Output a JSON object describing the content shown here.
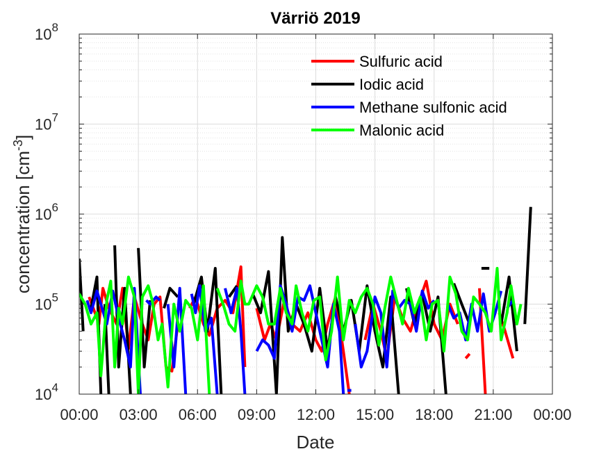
{
  "chart_data": {
    "type": "line",
    "title": "Värriö 2019",
    "xlabel": "Date",
    "ylabel": "concentration [cm",
    "ylabel_exponent": "-3",
    "yscale": "log",
    "ylim": [
      10000,
      100000000
    ],
    "xlim": [
      0,
      24
    ],
    "grid": true,
    "legend_position": "top-right",
    "x_tick_labels": [
      "00:00",
      "03:00",
      "06:00",
      "09:00",
      "12:00",
      "15:00",
      "18:00",
      "21:00",
      "00:00"
    ],
    "y_ticks": [
      {
        "base": "10",
        "exp": "4",
        "value": 10000
      },
      {
        "base": "10",
        "exp": "5",
        "value": 100000
      },
      {
        "base": "10",
        "exp": "6",
        "value": 1000000
      },
      {
        "base": "10",
        "exp": "7",
        "value": 10000000
      },
      {
        "base": "10",
        "exp": "8",
        "value": 100000000
      }
    ],
    "series": [
      {
        "name": "Sulfuric acid",
        "color": "#ff0000",
        "points": [
          [
            0.5,
            120000
          ],
          [
            0.8,
            80000
          ],
          [
            1.0,
            60000
          ],
          [
            1.2,
            150000
          ],
          [
            1.5,
            90000
          ],
          [
            1.9,
            60000
          ],
          [
            2.2,
            150000
          ],
          [
            2.5,
            32000
          ],
          [
            2.8,
            120000
          ],
          [
            3.2,
            60000
          ],
          [
            3.5,
            40000
          ],
          [
            3.8,
            100000
          ],
          [
            4.1,
            120000
          ],
          [
            4.4,
            20000
          ],
          [
            4.7,
            18000
          ],
          [
            5.0,
            60000
          ],
          [
            null,
            null
          ],
          [
            5.6,
            90000
          ],
          [
            5.9,
            120000
          ],
          [
            6.3,
            60000
          ],
          [
            6.6,
            45000
          ],
          [
            7.0,
            90000
          ],
          [
            7.4,
            110000
          ],
          [
            7.8,
            80000
          ],
          [
            8.2,
            260000
          ],
          [
            8.4,
            20000
          ],
          [
            null,
            null
          ],
          [
            9.0,
            90000
          ],
          [
            9.4,
            40000
          ],
          [
            9.7,
            60000
          ],
          [
            10.0,
            40000
          ],
          [
            10.4,
            110000
          ],
          [
            10.8,
            60000
          ],
          [
            11.2,
            50000
          ],
          [
            11.6,
            80000
          ],
          [
            12.0,
            40000
          ],
          [
            12.3,
            30000
          ],
          [
            12.6,
            60000
          ],
          [
            13.0,
            120000
          ],
          [
            13.4,
            30000
          ],
          [
            13.7,
            10000
          ],
          [
            null,
            null
          ],
          [
            14.5,
            40000
          ],
          [
            14.9,
            100000
          ],
          [
            15.3,
            50000
          ],
          [
            15.6,
            25000
          ],
          [
            16.0,
            120000
          ],
          [
            16.4,
            70000
          ],
          [
            16.8,
            50000
          ],
          [
            17.2,
            100000
          ],
          [
            17.6,
            180000
          ],
          [
            18.0,
            60000
          ],
          [
            18.4,
            40000
          ],
          [
            18.8,
            100000
          ],
          [
            19.2,
            60000
          ],
          [
            null,
            null
          ],
          [
            19.6,
            25000
          ],
          [
            19.8,
            28000
          ],
          [
            null,
            null
          ],
          [
            20.3,
            150000
          ],
          [
            20.6,
            10000
          ],
          [
            null,
            null
          ],
          [
            21.3,
            80000
          ],
          [
            21.6,
            50000
          ],
          [
            22.0,
            25000
          ]
        ]
      },
      {
        "name": "Iodic acid",
        "color": "#000000",
        "points": [
          [
            0.0,
            320000
          ],
          [
            0.2,
            50000
          ],
          [
            null,
            null
          ],
          [
            0.6,
            90000
          ],
          [
            0.9,
            200000
          ],
          [
            1.1,
            10000
          ],
          [
            null,
            null
          ],
          [
            1.3,
            100000
          ],
          [
            1.5,
            10000
          ],
          [
            null,
            null
          ],
          [
            1.8,
            450000
          ],
          [
            2.0,
            20000
          ],
          [
            2.3,
            150000
          ],
          [
            2.6,
            10000
          ],
          [
            null,
            null
          ],
          [
            3.0,
            420000
          ],
          [
            3.3,
            20000
          ],
          [
            3.6,
            110000
          ],
          [
            null,
            null
          ],
          [
            4.3,
            90000
          ],
          [
            4.6,
            150000
          ],
          [
            5.0,
            120000
          ],
          [
            null,
            null
          ],
          [
            5.8,
            100000
          ],
          [
            6.2,
            200000
          ],
          [
            6.5,
            50000
          ],
          [
            6.9,
            250000
          ],
          [
            7.2,
            10000
          ],
          [
            null,
            null
          ],
          [
            7.6,
            120000
          ],
          [
            8.0,
            160000
          ],
          [
            null,
            null
          ],
          [
            8.8,
            130000
          ],
          [
            9.2,
            80000
          ],
          [
            9.6,
            230000
          ],
          [
            10.0,
            10000
          ],
          [
            10.3,
            550000
          ],
          [
            10.6,
            50000
          ],
          [
            11.0,
            100000
          ],
          [
            11.4,
            60000
          ],
          [
            11.8,
            30000
          ],
          [
            12.2,
            150000
          ],
          [
            12.6,
            30000
          ],
          [
            13.0,
            120000
          ],
          [
            13.4,
            50000
          ],
          [
            13.8,
            110000
          ],
          [
            14.2,
            30000
          ],
          [
            14.6,
            160000
          ],
          [
            15.0,
            50000
          ],
          [
            15.4,
            20000
          ],
          [
            15.8,
            120000
          ],
          [
            16.2,
            10000
          ],
          [
            null,
            null
          ],
          [
            16.6,
            150000
          ],
          [
            17.0,
            60000
          ],
          [
            17.4,
            130000
          ],
          [
            17.8,
            50000
          ],
          [
            18.2,
            120000
          ],
          [
            18.6,
            10000
          ],
          [
            null,
            null
          ],
          [
            19.0,
            170000
          ],
          [
            19.4,
            100000
          ],
          [
            19.8,
            60000
          ],
          [
            null,
            null
          ],
          [
            20.4,
            250000
          ],
          [
            20.8,
            250000
          ],
          [
            null,
            null
          ],
          [
            21.4,
            60000
          ],
          [
            21.8,
            200000
          ],
          [
            22.2,
            30000
          ],
          [
            null,
            null
          ],
          [
            22.6,
            60000
          ],
          [
            22.9,
            1200000
          ]
        ]
      },
      {
        "name": "Methane sulfonic acid",
        "color": "#0000ff",
        "points": [
          [
            0.4,
            110000
          ],
          [
            0.6,
            80000
          ],
          [
            0.9,
            140000
          ],
          [
            1.1,
            100000
          ],
          [
            1.4,
            60000
          ],
          [
            1.7,
            140000
          ],
          [
            2.0,
            70000
          ],
          [
            2.3,
            40000
          ],
          [
            2.6,
            20000
          ],
          [
            2.8,
            150000
          ],
          [
            3.1,
            10000
          ],
          [
            null,
            null
          ],
          [
            3.4,
            110000
          ],
          [
            3.6,
            100000
          ],
          [
            3.9,
            120000
          ],
          [
            4.1,
            110000
          ],
          [
            null,
            null
          ],
          [
            4.5,
            100000
          ],
          [
            4.8,
            20000
          ],
          [
            5.1,
            150000
          ],
          [
            5.4,
            10000
          ],
          [
            null,
            null
          ],
          [
            5.7,
            130000
          ],
          [
            5.9,
            80000
          ],
          [
            6.1,
            160000
          ],
          [
            6.4,
            50000
          ],
          [
            6.7,
            70000
          ],
          [
            7.0,
            10000
          ],
          [
            null,
            null
          ],
          [
            7.4,
            150000
          ],
          [
            7.7,
            80000
          ],
          [
            8.0,
            150000
          ],
          [
            8.2,
            50000
          ],
          [
            8.4,
            10000
          ],
          [
            null,
            null
          ],
          [
            9.0,
            30000
          ],
          [
            9.3,
            40000
          ],
          [
            9.6,
            35000
          ],
          [
            9.9,
            25000
          ],
          [
            10.2,
            160000
          ],
          [
            10.5,
            100000
          ],
          [
            10.8,
            50000
          ],
          [
            11.1,
            120000
          ],
          [
            11.4,
            110000
          ],
          [
            11.7,
            160000
          ],
          [
            12.0,
            80000
          ],
          [
            12.3,
            40000
          ],
          [
            12.6,
            20000
          ],
          [
            12.9,
            100000
          ],
          [
            13.2,
            50000
          ],
          [
            13.4,
            10000
          ],
          [
            null,
            null
          ],
          [
            13.6,
            11000
          ],
          [
            13.8,
            11000
          ],
          [
            null,
            null
          ],
          [
            14.0,
            60000
          ],
          [
            14.3,
            20000
          ],
          [
            14.6,
            30000
          ],
          [
            15.0,
            120000
          ],
          [
            15.3,
            80000
          ],
          [
            15.6,
            20000
          ],
          [
            15.9,
            140000
          ],
          [
            16.2,
            90000
          ],
          [
            16.5,
            110000
          ],
          [
            16.8,
            100000
          ],
          [
            17.1,
            50000
          ],
          [
            17.4,
            140000
          ],
          [
            17.7,
            90000
          ],
          [
            18.0,
            110000
          ],
          [
            null,
            null
          ],
          [
            18.7,
            100000
          ],
          [
            19.0,
            70000
          ],
          [
            19.3,
            80000
          ],
          [
            19.6,
            40000
          ],
          [
            19.9,
            100000
          ],
          [
            20.2,
            50000
          ],
          [
            20.5,
            130000
          ],
          [
            20.8,
            50000
          ],
          [
            21.1,
            80000
          ],
          [
            21.4,
            140000
          ],
          [
            null,
            null
          ],
          [
            21.7,
            90000
          ],
          [
            22.0,
            110000
          ]
        ]
      },
      {
        "name": "Malonic acid",
        "color": "#00ff00",
        "points": [
          [
            0.0,
            130000
          ],
          [
            0.3,
            100000
          ],
          [
            0.6,
            60000
          ],
          [
            0.9,
            80000
          ],
          [
            1.1,
            16000
          ],
          [
            1.4,
            110000
          ],
          [
            1.6,
            180000
          ],
          [
            1.8,
            20000
          ],
          [
            2.0,
            90000
          ],
          [
            2.2,
            60000
          ],
          [
            2.5,
            200000
          ],
          [
            2.8,
            120000
          ],
          [
            3.0,
            10000
          ],
          [
            3.2,
            120000
          ],
          [
            3.5,
            160000
          ],
          [
            3.7,
            110000
          ],
          [
            4.0,
            40000
          ],
          [
            4.2,
            60000
          ],
          [
            4.5,
            12000
          ],
          [
            4.8,
            100000
          ],
          [
            5.1,
            50000
          ],
          [
            5.4,
            110000
          ],
          [
            5.7,
            90000
          ],
          [
            6.0,
            40000
          ],
          [
            6.3,
            160000
          ],
          [
            6.6,
            10000
          ],
          [
            null,
            null
          ],
          [
            7.0,
            150000
          ],
          [
            7.3,
            100000
          ],
          [
            7.6,
            60000
          ],
          [
            7.9,
            50000
          ],
          [
            8.2,
            180000
          ],
          [
            8.4,
            100000
          ],
          [
            8.6,
            100000
          ],
          [
            9.0,
            160000
          ],
          [
            9.3,
            120000
          ],
          [
            9.6,
            60000
          ],
          [
            9.9,
            60000
          ],
          [
            10.2,
            150000
          ],
          [
            10.5,
            80000
          ],
          [
            10.8,
            60000
          ],
          [
            11.0,
            160000
          ],
          [
            11.3,
            80000
          ],
          [
            11.6,
            50000
          ],
          [
            11.9,
            110000
          ],
          [
            12.2,
            120000
          ],
          [
            12.5,
            24000
          ],
          [
            12.8,
            50000
          ],
          [
            13.1,
            200000
          ],
          [
            13.4,
            40000
          ],
          [
            13.7,
            110000
          ],
          [
            14.0,
            80000
          ],
          [
            14.3,
            120000
          ],
          [
            14.6,
            150000
          ],
          [
            14.9,
            100000
          ],
          [
            15.2,
            35000
          ],
          [
            15.5,
            90000
          ],
          [
            15.8,
            200000
          ],
          [
            16.1,
            110000
          ],
          [
            16.4,
            60000
          ],
          [
            16.7,
            150000
          ],
          [
            17.0,
            80000
          ],
          [
            17.3,
            120000
          ],
          [
            17.6,
            40000
          ],
          [
            17.9,
            100000
          ],
          [
            18.2,
            110000
          ],
          [
            18.5,
            30000
          ],
          [
            18.8,
            200000
          ],
          [
            19.1,
            130000
          ],
          [
            19.4,
            50000
          ],
          [
            19.7,
            40000
          ],
          [
            20.0,
            120000
          ],
          [
            20.3,
            100000
          ],
          [
            20.6,
            80000
          ],
          [
            20.9,
            50000
          ],
          [
            21.2,
            250000
          ],
          [
            21.4,
            40000
          ],
          [
            21.7,
            80000
          ],
          [
            21.9,
            160000
          ],
          [
            22.2,
            60000
          ],
          [
            22.4,
            100000
          ]
        ]
      }
    ]
  }
}
